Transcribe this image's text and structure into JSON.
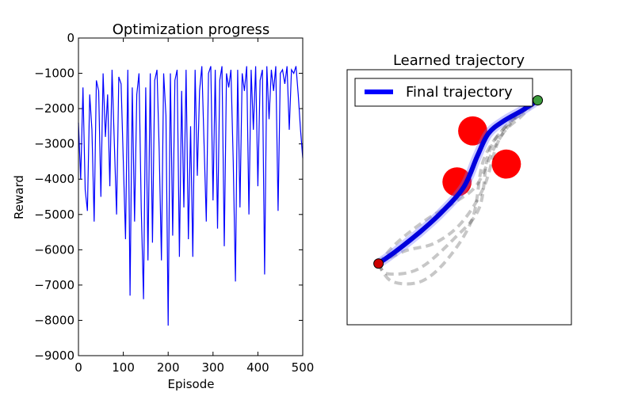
{
  "chart_data": [
    {
      "type": "line",
      "title": "Optimization progress",
      "xlabel": "Episode",
      "ylabel": "Reward",
      "xlim": [
        0,
        500
      ],
      "ylim": [
        -9000,
        0
      ],
      "xticks": [
        "0",
        "100",
        "200",
        "300",
        "400",
        "500"
      ],
      "yticks": [
        "0",
        "−1000",
        "−2000",
        "−3000",
        "−4000",
        "−5000",
        "−6000",
        "−7000",
        "−8000",
        "−9000"
      ],
      "color": "#0000ff",
      "series": [
        {
          "x": [
            0,
            5,
            10,
            15,
            20,
            25,
            30,
            35,
            40,
            45,
            50,
            55,
            60,
            65,
            70,
            75,
            80,
            85,
            90,
            95,
            100,
            105,
            110,
            115,
            120,
            125,
            130,
            135,
            140,
            145,
            150,
            155,
            160,
            165,
            170,
            175,
            180,
            185,
            190,
            195,
            200,
            205,
            210,
            215,
            220,
            225,
            230,
            235,
            240,
            245,
            250,
            255,
            260,
            265,
            270,
            275,
            280,
            285,
            290,
            295,
            300,
            305,
            310,
            315,
            320,
            325,
            330,
            335,
            340,
            345,
            350,
            355,
            360,
            365,
            370,
            375,
            380,
            385,
            390,
            395,
            400,
            405,
            410,
            415,
            420,
            425,
            430,
            435,
            440,
            445,
            450,
            455,
            460,
            465,
            470,
            475,
            480,
            485,
            490,
            495,
            500
          ],
          "values": [
            -2400,
            -4000,
            -1400,
            -4300,
            -4900,
            -1600,
            -2600,
            -5200,
            -1200,
            -1500,
            -4500,
            -1000,
            -2800,
            -1600,
            -4200,
            -900,
            -3000,
            -5000,
            -1100,
            -1300,
            -3500,
            -5700,
            -900,
            -7300,
            -1400,
            -5200,
            -1600,
            -1000,
            -4800,
            -7400,
            -1400,
            -6300,
            -1000,
            -5800,
            -1200,
            -900,
            -3200,
            -6300,
            -1000,
            -2200,
            -8150,
            -1000,
            -5600,
            -1200,
            -900,
            -6200,
            -1500,
            -4800,
            -900,
            -5700,
            -2500,
            -6200,
            -900,
            -3900,
            -1500,
            -800,
            -3000,
            -5200,
            -1000,
            -800,
            -4600,
            -900,
            -5400,
            -1200,
            -800,
            -5900,
            -1000,
            -1400,
            -900,
            -3500,
            -6900,
            -900,
            -4800,
            -1000,
            -1500,
            -800,
            -5000,
            -900,
            -2600,
            -800,
            -4200,
            -1200,
            -900,
            -6700,
            -800,
            -2300,
            -900,
            -1500,
            -800,
            -4900,
            -1000,
            -900,
            -1300,
            -800,
            -2600,
            -900,
            -1000,
            -800,
            -1600,
            -2600,
            -3400
          ]
        }
      ]
    },
    {
      "type": "scatter",
      "title": "Learned trajectory",
      "legend": [
        "Final trajectory"
      ],
      "legend_position": "upper-left",
      "axes_visible": false,
      "xlim": [
        0,
        10
      ],
      "ylim": [
        0,
        10
      ],
      "start": {
        "x": 1.4,
        "y": 2.4,
        "color": "#cc0000"
      },
      "goal": {
        "x": 8.5,
        "y": 8.8,
        "color": "#3c9b3c"
      },
      "obstacles": [
        {
          "x": 5.6,
          "y": 7.6,
          "r": 0.65
        },
        {
          "x": 4.9,
          "y": 5.6,
          "r": 0.65
        },
        {
          "x": 7.1,
          "y": 6.3,
          "r": 0.65
        }
      ],
      "series": [
        {
          "name": "Final trajectory",
          "color": "#0000dd",
          "x": [
            1.4,
            2.2,
            3.2,
            4.2,
            5.2,
            5.8,
            6.3,
            7.0,
            7.8,
            8.5
          ],
          "y": [
            2.4,
            2.9,
            3.6,
            4.4,
            5.4,
            6.6,
            7.5,
            8.0,
            8.4,
            8.8
          ]
        }
      ],
      "dashed_trajectories": [
        {
          "x": [
            1.4,
            2.2,
            3.5,
            4.8,
            5.8,
            6.6,
            7.4,
            8.5
          ],
          "y": [
            2.4,
            3.2,
            4.1,
            4.8,
            5.5,
            7.0,
            8.0,
            8.8
          ]
        },
        {
          "x": [
            1.4,
            1.8,
            3.2,
            4.8,
            5.9,
            6.3,
            7.1,
            8.5
          ],
          "y": [
            2.4,
            2.0,
            2.2,
            3.4,
            4.6,
            6.7,
            7.8,
            8.8
          ]
        },
        {
          "x": [
            1.4,
            2.0,
            3.3,
            4.5,
            5.6,
            6.1,
            7.2,
            8.5
          ],
          "y": [
            2.4,
            1.7,
            1.7,
            2.6,
            4.2,
            6.5,
            7.9,
            8.8
          ]
        },
        {
          "x": [
            1.4,
            2.6,
            3.9,
            5.1,
            6.1,
            6.8,
            7.8,
            8.5
          ],
          "y": [
            2.4,
            2.9,
            3.2,
            4.0,
            5.4,
            7.3,
            8.2,
            8.8
          ]
        }
      ]
    }
  ]
}
